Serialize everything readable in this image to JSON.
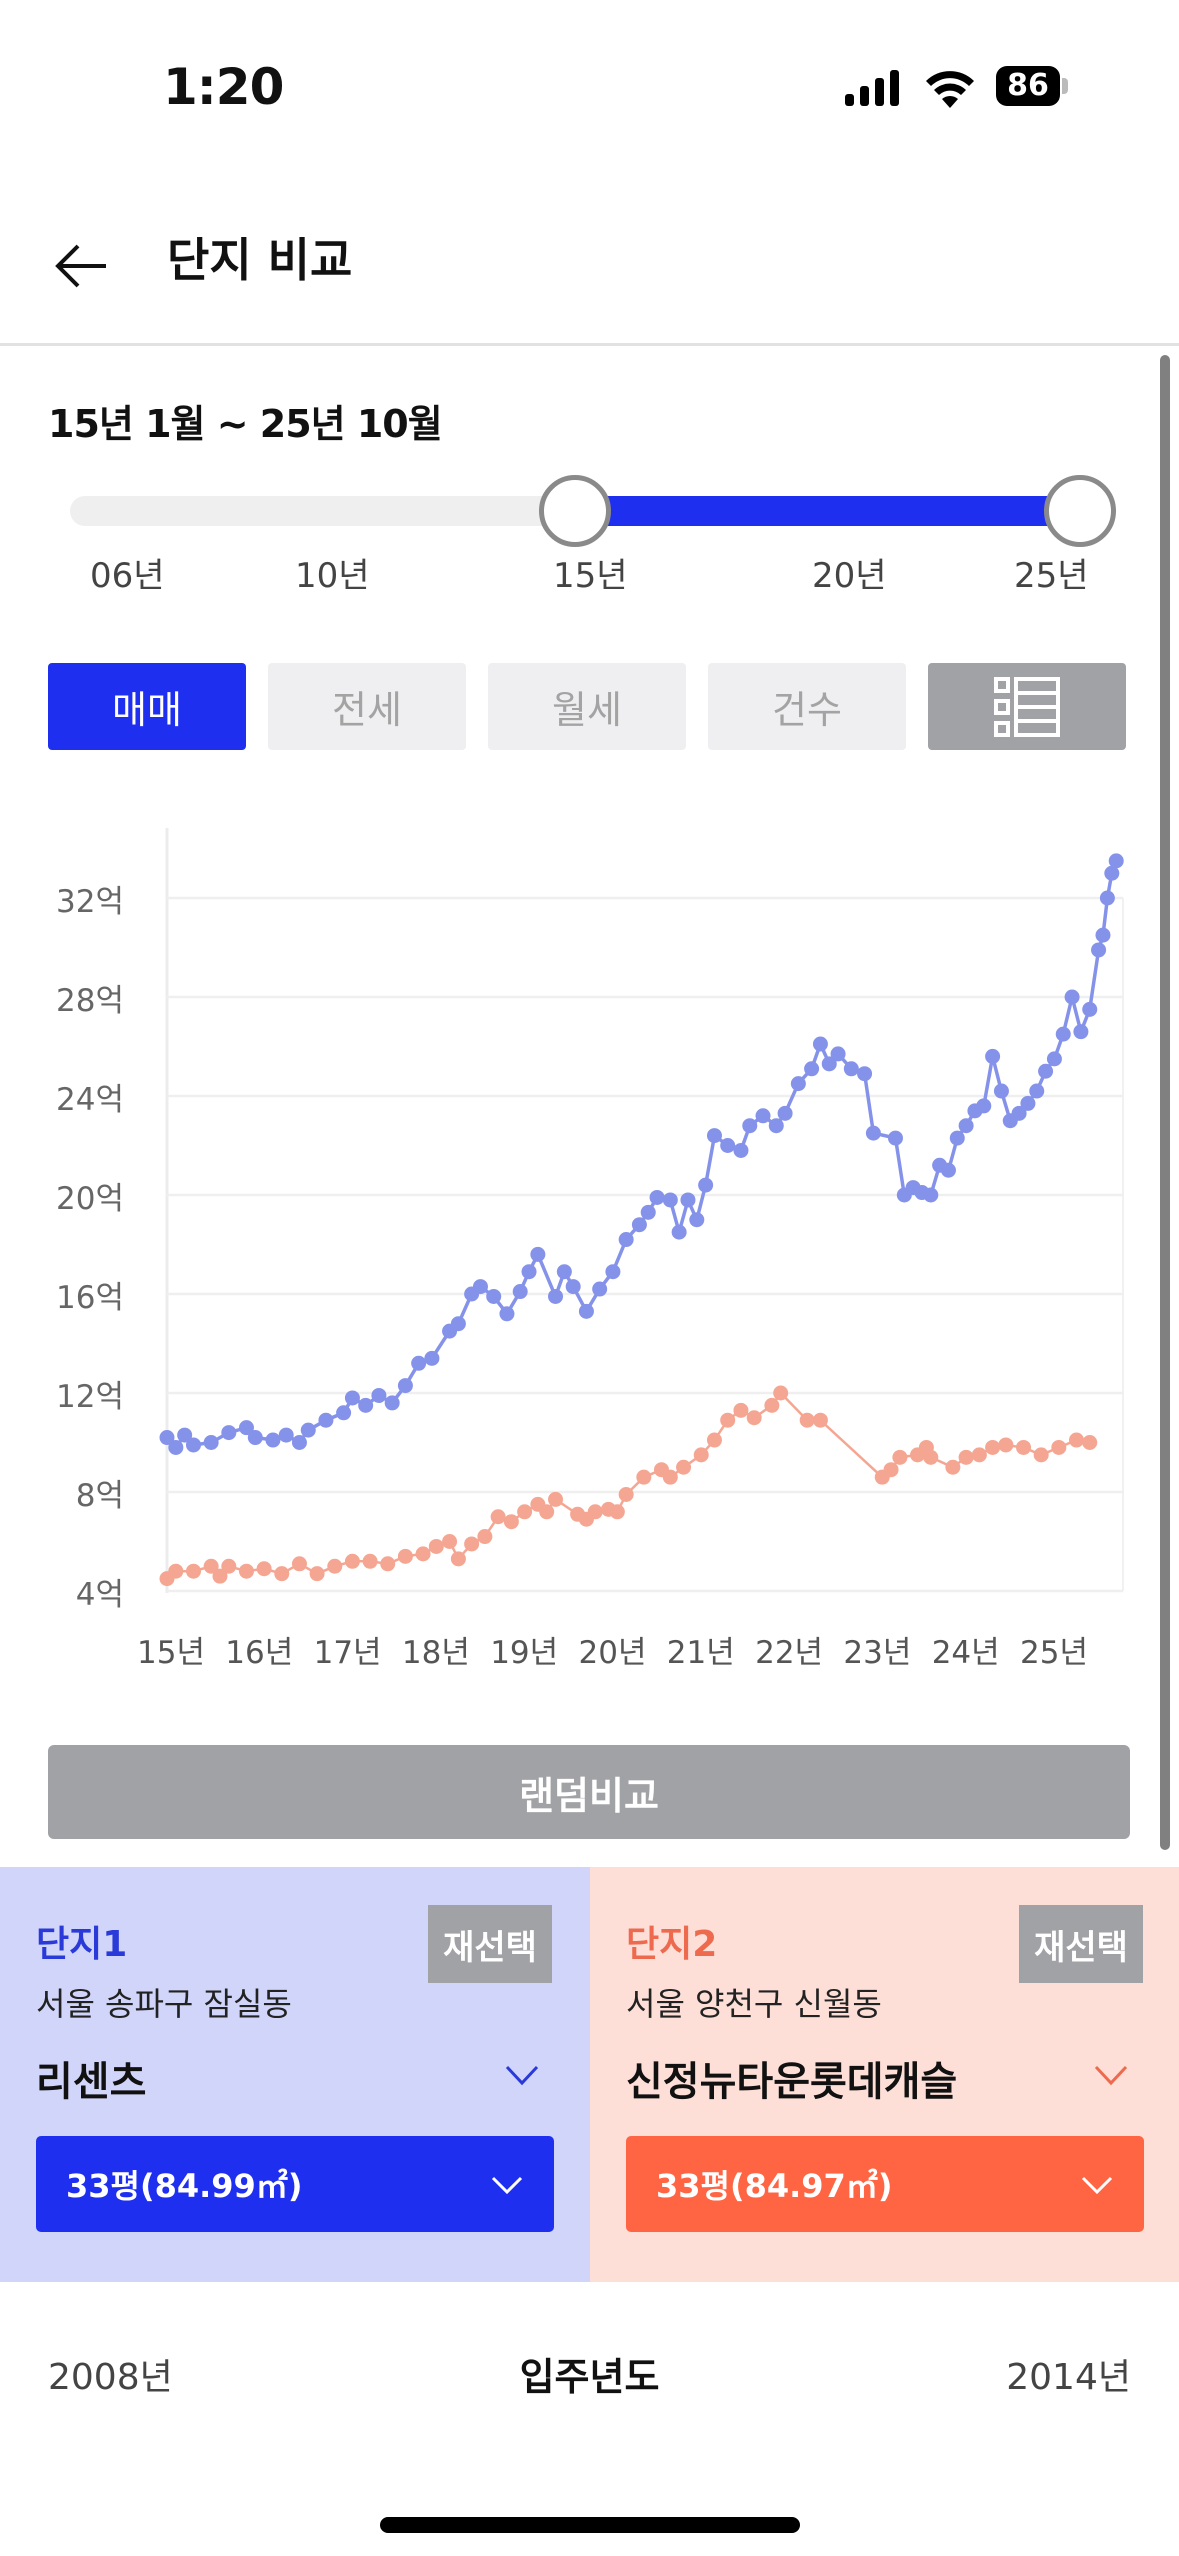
{
  "status_bar": {
    "time": "1:20",
    "battery": "86"
  },
  "header": {
    "title": "단지 비교",
    "back_icon": "arrow-left-icon"
  },
  "period": {
    "label": "15년 1월 ~ 25년 10월",
    "slider_ticks": [
      "06년",
      "10년",
      "15년",
      "20년",
      "25년"
    ],
    "start": "15년",
    "end": "25년"
  },
  "tabs": [
    {
      "label": "매매",
      "active": true
    },
    {
      "label": "전세",
      "active": false
    },
    {
      "label": "월세",
      "active": false
    },
    {
      "label": "건수",
      "active": false
    },
    {
      "label": "",
      "icon": "list-view-icon",
      "active": false
    }
  ],
  "chart_data": {
    "type": "line",
    "title": "",
    "xlabel": "",
    "ylabel": "",
    "x_ticks": [
      "15년",
      "16년",
      "17년",
      "18년",
      "19년",
      "20년",
      "21년",
      "22년",
      "23년",
      "24년",
      "25년"
    ],
    "y_ticks": [
      "4억",
      "8억",
      "12억",
      "16억",
      "20억",
      "24억",
      "28억",
      "32억"
    ],
    "ylim": [
      4,
      33.5
    ],
    "xlim": [
      2015.0,
      2025.8
    ],
    "grid": true,
    "legend": "none",
    "series": [
      {
        "name": "단지1 리센츠",
        "color": "#8592ea",
        "points": [
          [
            2015.0,
            10.2
          ],
          [
            2015.1,
            9.8
          ],
          [
            2015.2,
            10.3
          ],
          [
            2015.3,
            9.9
          ],
          [
            2015.5,
            10.0
          ],
          [
            2015.7,
            10.4
          ],
          [
            2015.9,
            10.6
          ],
          [
            2016.0,
            10.2
          ],
          [
            2016.2,
            10.1
          ],
          [
            2016.35,
            10.3
          ],
          [
            2016.5,
            10.0
          ],
          [
            2016.6,
            10.5
          ],
          [
            2016.8,
            10.9
          ],
          [
            2017.0,
            11.2
          ],
          [
            2017.1,
            11.8
          ],
          [
            2017.25,
            11.5
          ],
          [
            2017.4,
            11.9
          ],
          [
            2017.55,
            11.6
          ],
          [
            2017.7,
            12.3
          ],
          [
            2017.85,
            13.2
          ],
          [
            2018.0,
            13.4
          ],
          [
            2018.2,
            14.5
          ],
          [
            2018.3,
            14.8
          ],
          [
            2018.45,
            16.0
          ],
          [
            2018.55,
            16.3
          ],
          [
            2018.7,
            15.9
          ],
          [
            2018.85,
            15.2
          ],
          [
            2019.0,
            16.1
          ],
          [
            2019.1,
            16.9
          ],
          [
            2019.2,
            17.6
          ],
          [
            2019.4,
            15.9
          ],
          [
            2019.5,
            16.9
          ],
          [
            2019.6,
            16.3
          ],
          [
            2019.75,
            15.3
          ],
          [
            2019.9,
            16.2
          ],
          [
            2020.05,
            16.9
          ],
          [
            2020.2,
            18.2
          ],
          [
            2020.35,
            18.8
          ],
          [
            2020.45,
            19.3
          ],
          [
            2020.55,
            19.9
          ],
          [
            2020.7,
            19.8
          ],
          [
            2020.8,
            18.5
          ],
          [
            2020.9,
            19.8
          ],
          [
            2021.0,
            19.0
          ],
          [
            2021.1,
            20.4
          ],
          [
            2021.2,
            22.4
          ],
          [
            2021.35,
            22.0
          ],
          [
            2021.5,
            21.8
          ],
          [
            2021.6,
            22.8
          ],
          [
            2021.75,
            23.2
          ],
          [
            2021.9,
            22.8
          ],
          [
            2022.0,
            23.3
          ],
          [
            2022.15,
            24.5
          ],
          [
            2022.3,
            25.1
          ],
          [
            2022.4,
            26.1
          ],
          [
            2022.5,
            25.3
          ],
          [
            2022.6,
            25.7
          ],
          [
            2022.75,
            25.1
          ],
          [
            2022.9,
            24.9
          ],
          [
            2023.0,
            22.5
          ],
          [
            2023.25,
            22.3
          ],
          [
            2023.35,
            20.0
          ],
          [
            2023.45,
            20.3
          ],
          [
            2023.55,
            20.1
          ],
          [
            2023.65,
            20.0
          ],
          [
            2023.75,
            21.2
          ],
          [
            2023.85,
            21.0
          ],
          [
            2023.95,
            22.3
          ],
          [
            2024.05,
            22.8
          ],
          [
            2024.15,
            23.4
          ],
          [
            2024.25,
            23.6
          ],
          [
            2024.35,
            25.6
          ],
          [
            2024.45,
            24.2
          ],
          [
            2024.55,
            23.0
          ],
          [
            2024.65,
            23.3
          ],
          [
            2024.75,
            23.7
          ],
          [
            2024.85,
            24.2
          ],
          [
            2024.95,
            25.0
          ],
          [
            2025.05,
            25.5
          ],
          [
            2025.15,
            26.5
          ],
          [
            2025.25,
            28.0
          ],
          [
            2025.35,
            26.6
          ],
          [
            2025.45,
            27.5
          ],
          [
            2025.55,
            29.9
          ],
          [
            2025.6,
            30.5
          ],
          [
            2025.65,
            32.0
          ],
          [
            2025.7,
            33.0
          ],
          [
            2025.75,
            33.5
          ]
        ]
      },
      {
        "name": "단지2 신정뉴타운롯데캐슬",
        "color": "#f5a692",
        "points": [
          [
            2015.0,
            4.5
          ],
          [
            2015.1,
            4.8
          ],
          [
            2015.3,
            4.8
          ],
          [
            2015.5,
            5.0
          ],
          [
            2015.6,
            4.6
          ],
          [
            2015.7,
            5.0
          ],
          [
            2015.9,
            4.8
          ],
          [
            2016.1,
            4.9
          ],
          [
            2016.3,
            4.7
          ],
          [
            2016.5,
            5.1
          ],
          [
            2016.7,
            4.7
          ],
          [
            2016.9,
            5.0
          ],
          [
            2017.1,
            5.2
          ],
          [
            2017.3,
            5.2
          ],
          [
            2017.5,
            5.1
          ],
          [
            2017.7,
            5.4
          ],
          [
            2017.9,
            5.5
          ],
          [
            2018.05,
            5.8
          ],
          [
            2018.2,
            6.0
          ],
          [
            2018.3,
            5.3
          ],
          [
            2018.45,
            5.9
          ],
          [
            2018.6,
            6.2
          ],
          [
            2018.75,
            7.0
          ],
          [
            2018.9,
            6.8
          ],
          [
            2019.05,
            7.2
          ],
          [
            2019.2,
            7.5
          ],
          [
            2019.3,
            7.2
          ],
          [
            2019.4,
            7.7
          ],
          [
            2019.65,
            7.1
          ],
          [
            2019.75,
            6.9
          ],
          [
            2019.85,
            7.2
          ],
          [
            2020.0,
            7.3
          ],
          [
            2020.1,
            7.2
          ],
          [
            2020.2,
            7.9
          ],
          [
            2020.4,
            8.6
          ],
          [
            2020.6,
            8.9
          ],
          [
            2020.7,
            8.6
          ],
          [
            2020.85,
            9.0
          ],
          [
            2021.05,
            9.5
          ],
          [
            2021.2,
            10.1
          ],
          [
            2021.35,
            10.9
          ],
          [
            2021.5,
            11.3
          ],
          [
            2021.65,
            11.0
          ],
          [
            2021.85,
            11.5
          ],
          [
            2021.95,
            12.0
          ],
          [
            2022.25,
            10.9
          ],
          [
            2022.4,
            10.9
          ],
          [
            2023.1,
            8.6
          ],
          [
            2023.2,
            8.9
          ],
          [
            2023.3,
            9.4
          ],
          [
            2023.5,
            9.5
          ],
          [
            2023.6,
            9.8
          ],
          [
            2023.65,
            9.4
          ],
          [
            2023.9,
            9.0
          ],
          [
            2024.05,
            9.4
          ],
          [
            2024.2,
            9.5
          ],
          [
            2024.35,
            9.8
          ],
          [
            2024.5,
            9.9
          ],
          [
            2024.7,
            9.8
          ],
          [
            2024.9,
            9.5
          ],
          [
            2025.1,
            9.8
          ],
          [
            2025.3,
            10.1
          ],
          [
            2025.45,
            10.0
          ]
        ]
      }
    ]
  },
  "random_compare": {
    "label": "랜덤비교"
  },
  "complex1": {
    "title": "단지1",
    "reselect": "재선택",
    "address": "서울 송파구 잠실동",
    "name": "리센츠",
    "size": "33평(84.99㎡)",
    "accent": "#1f2ff0",
    "bg": "#d1d5fa"
  },
  "complex2": {
    "title": "단지2",
    "reselect": "재선택",
    "address": "서울 양천구 신월동",
    "name": "신정뉴타운롯데캐슬",
    "size": "33평(84.97㎡)",
    "accent": "#ff6443",
    "bg": "#fedfd8"
  },
  "move_in_year": {
    "label": "입주년도",
    "complex1": "2008년",
    "complex2": "2014년"
  }
}
